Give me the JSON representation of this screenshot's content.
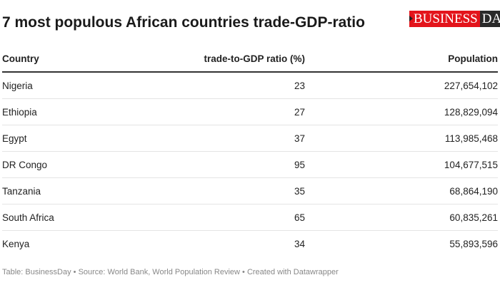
{
  "title": "7 most populous African countries trade-GDP-ratio",
  "logo": {
    "text_left": "BUSINESS",
    "text_right": "DAY",
    "colors": {
      "red": "#e3141b",
      "dark": "#2a2a2a"
    }
  },
  "chart_data": {
    "type": "table",
    "columns": [
      "Country",
      "trade-to-GDP ratio (%)",
      "Population"
    ],
    "rows": [
      [
        "Nigeria",
        "23",
        "227,654,102"
      ],
      [
        "Ethiopia",
        "27",
        "128,829,094"
      ],
      [
        "Egypt",
        "37",
        "113,985,468"
      ],
      [
        "DR Congo",
        "95",
        "104,677,515"
      ],
      [
        "Tanzania",
        "35",
        "68,864,190"
      ],
      [
        "South Africa",
        "65",
        "60,835,261"
      ],
      [
        "Kenya",
        "34",
        "55,893,596"
      ]
    ]
  },
  "footer": "Table: BusinessDay  • Source: World Bank, World Population Review • Created with Datawrapper"
}
